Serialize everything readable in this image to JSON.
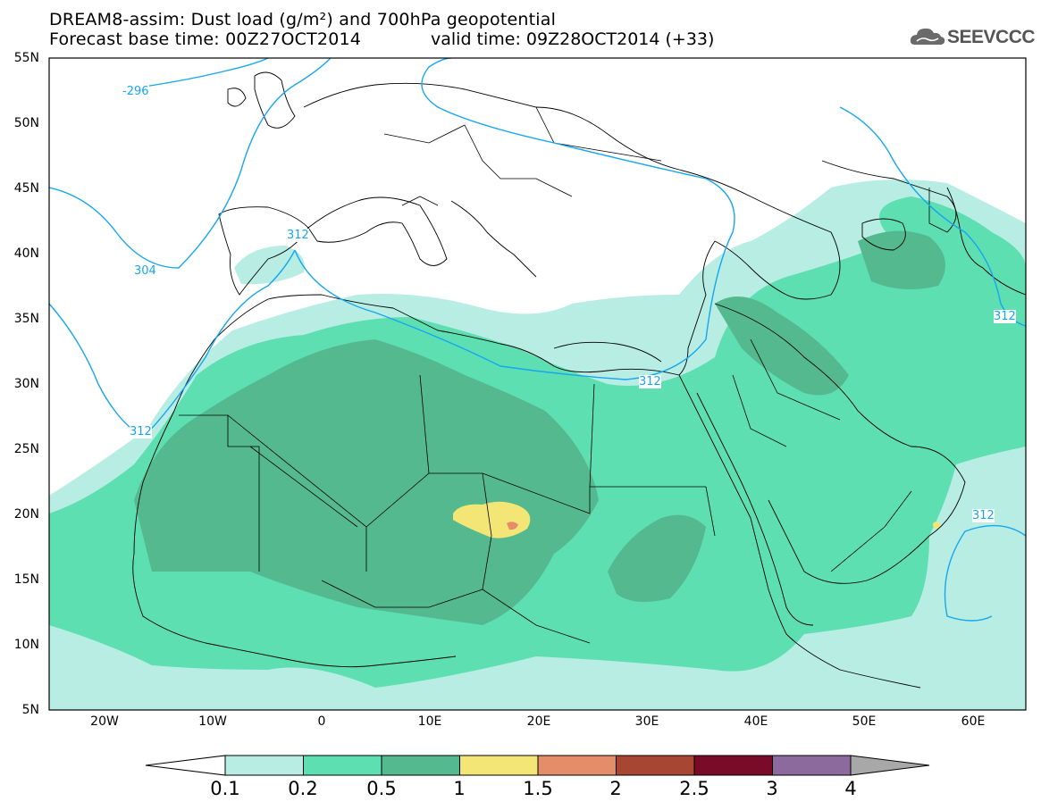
{
  "title_line1": "DREAM8-assim: Dust load (g/m²) and 700hPa geopotential",
  "title_line2": "Forecast base time: 00Z27OCT2014",
  "valid_time": "valid time: 09Z28OCT2014 (+33)",
  "logo_text": "SEEVCCC",
  "lat_labels": [
    "55N",
    "50N",
    "45N",
    "40N",
    "35N",
    "30N",
    "25N",
    "20N",
    "15N",
    "10N",
    "5N"
  ],
  "lon_labels": [
    "20W",
    "10W",
    "0",
    "10E",
    "20E",
    "30E",
    "40E",
    "50E",
    "60E"
  ],
  "contour_labels": [
    "-296",
    "304",
    "312",
    "312",
    "312",
    "312",
    "312"
  ],
  "colorbar": {
    "levels": [
      "0.1",
      "0.2",
      "0.5",
      "1",
      "1.5",
      "2",
      "2.5",
      "3",
      "4"
    ],
    "colors": [
      "#b8ede4",
      "#5ddfb2",
      "#55b98f",
      "#f3e676",
      "#e58d68",
      "#a84634",
      "#7a0b28",
      "#8c6a9d"
    ],
    "under_color": "#ffffff",
    "over_color": "#a8a8a8"
  }
}
